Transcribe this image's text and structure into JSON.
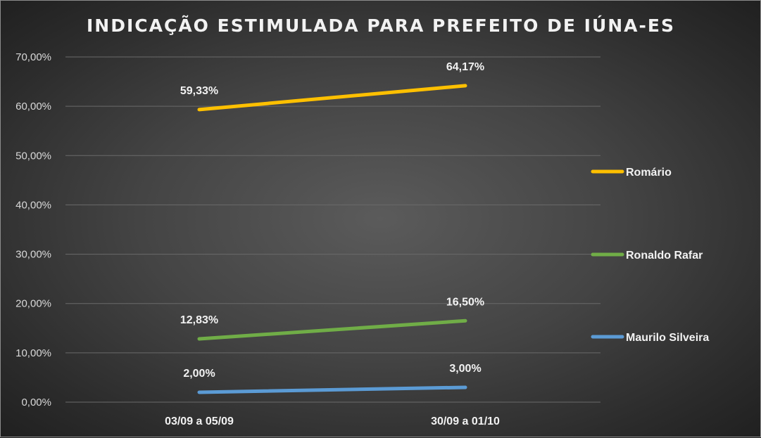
{
  "chart_data": {
    "type": "line",
    "title": "INDICAÇÃO ESTIMULADA PARA PREFEITO DE IÚNA-ES",
    "xlabel": "",
    "ylabel": "",
    "categories": [
      "03/09 a 05/09",
      "30/09 a 01/10"
    ],
    "ylim": [
      0,
      70
    ],
    "yticks": [
      0,
      10,
      20,
      30,
      40,
      50,
      60,
      70
    ],
    "ytick_labels": [
      "0,00%",
      "10,00%",
      "20,00%",
      "30,00%",
      "40,00%",
      "50,00%",
      "60,00%",
      "70,00%"
    ],
    "grid": true,
    "legend_position": "right",
    "series": [
      {
        "name": "Romário",
        "values": [
          59.33,
          64.17
        ],
        "labels": [
          "59,33%",
          "64,17%"
        ],
        "color": "#ffc000"
      },
      {
        "name": "Ronaldo Rafar",
        "values": [
          12.83,
          16.5
        ],
        "labels": [
          "12,83%",
          "16,50%"
        ],
        "color": "#70ad47"
      },
      {
        "name": "Maurilo Silveira",
        "values": [
          2.0,
          3.0
        ],
        "labels": [
          "2,00%",
          "3,00%"
        ],
        "color": "#5b9bd5"
      }
    ]
  }
}
